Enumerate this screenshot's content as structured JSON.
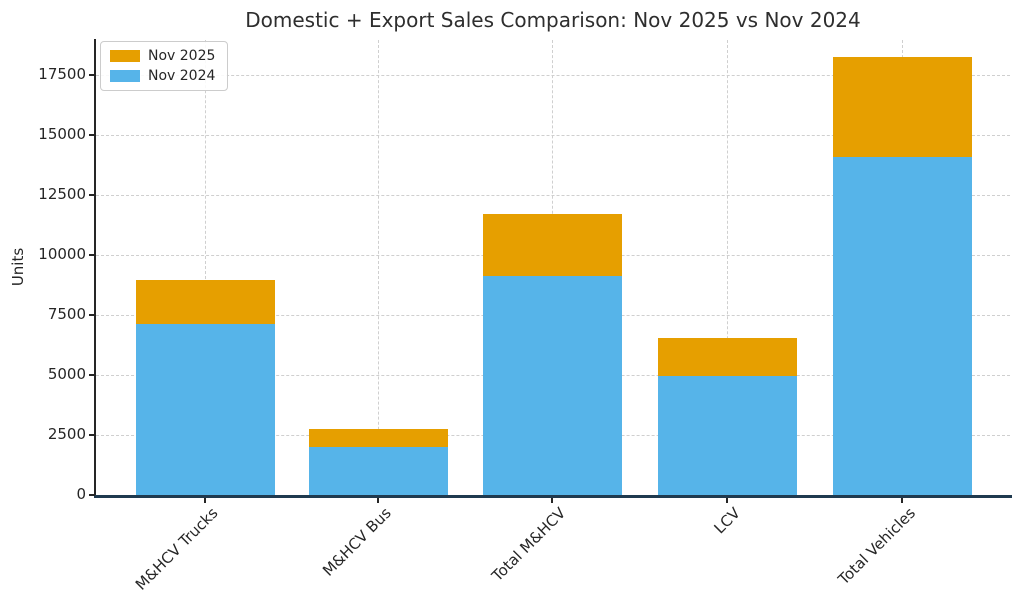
{
  "title": "Domestic + Export Sales Comparison: Nov 2025 vs Nov 2024",
  "ylabel": "Units",
  "legend": {
    "items": [
      {
        "label": "Nov 2025",
        "color": "#E69F00"
      },
      {
        "label": "Nov 2024",
        "color": "#56B4E9"
      }
    ]
  },
  "chart_data": {
    "type": "bar",
    "subtype": "overlay (Nov 2025 full bar behind, Nov 2024 drawn in front from baseline)",
    "title": "Domestic + Export Sales Comparison: Nov 2025 vs Nov 2024",
    "xlabel": "",
    "ylabel": "Units",
    "categories": [
      "M&HCV Trucks",
      "M&HCV Bus",
      "Total M&HCV",
      "LCV",
      "Total Vehicles"
    ],
    "series": [
      {
        "name": "Nov 2025",
        "color": "#E69F00",
        "values": [
          8950,
          2750,
          11700,
          6550,
          18250
        ]
      },
      {
        "name": "Nov 2024",
        "color": "#56B4E9",
        "values": [
          7125,
          2000,
          9125,
          4950,
          14075
        ]
      }
    ],
    "yticks": [
      0,
      2500,
      5000,
      7500,
      10000,
      12500,
      15000,
      17500
    ],
    "ylim": [
      0,
      18950
    ],
    "grid": "dashed, horizontal at yticks and vertical at category centers",
    "legend_position": "upper left",
    "axis_colors": {
      "left_spine": "#262626",
      "bottom_spine": "#1f3a4f"
    }
  }
}
